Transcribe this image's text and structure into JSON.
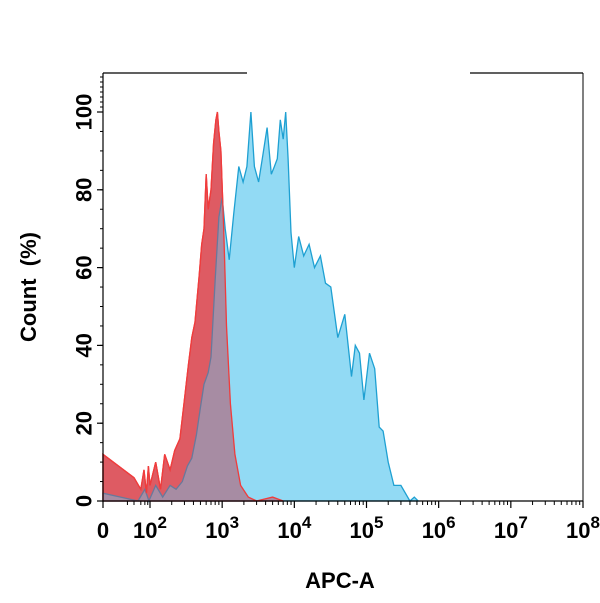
{
  "chart_data": {
    "type": "area",
    "xlabel": "APC-A",
    "ylabel": "Count  (%)",
    "x_scale": "biexponential-log",
    "xlim": [
      0,
      100000000
    ],
    "ylim": [
      0,
      100
    ],
    "x_ticks": [
      {
        "value": 0,
        "base": "0",
        "exp": ""
      },
      {
        "value": 100,
        "base": "10",
        "exp": "2"
      },
      {
        "value": 1000,
        "base": "10",
        "exp": "3"
      },
      {
        "value": 10000,
        "base": "10",
        "exp": "4"
      },
      {
        "value": 100000,
        "base": "10",
        "exp": "5"
      },
      {
        "value": 1000000,
        "base": "10",
        "exp": "6"
      },
      {
        "value": 10000000,
        "base": "10",
        "exp": "7"
      },
      {
        "value": 100000000,
        "base": "10",
        "exp": "8"
      }
    ],
    "y_ticks": [
      "0",
      "20",
      "40",
      "60",
      "80",
      "100"
    ],
    "series": [
      {
        "color": "#f03c3c",
        "fill": "#f56a6a",
        "points": [
          [
            0,
            12
          ],
          [
            20,
            6
          ],
          [
            40,
            3
          ],
          [
            55,
            8
          ],
          [
            70,
            2
          ],
          [
            85,
            9
          ],
          [
            100,
            4
          ],
          [
            120,
            10
          ],
          [
            140,
            3
          ],
          [
            160,
            12
          ],
          [
            190,
            8
          ],
          [
            220,
            13
          ],
          [
            260,
            16
          ],
          [
            300,
            26
          ],
          [
            340,
            35
          ],
          [
            380,
            42
          ],
          [
            420,
            46
          ],
          [
            480,
            58
          ],
          [
            520,
            66
          ],
          [
            560,
            70
          ],
          [
            600,
            84
          ],
          [
            640,
            75
          ],
          [
            700,
            80
          ],
          [
            760,
            92
          ],
          [
            820,
            98
          ],
          [
            860,
            100
          ],
          [
            900,
            95
          ],
          [
            960,
            90
          ],
          [
            1050,
            70
          ],
          [
            1150,
            45
          ],
          [
            1300,
            25
          ],
          [
            1500,
            12
          ],
          [
            1800,
            4
          ],
          [
            2300,
            1
          ],
          [
            3000,
            0
          ],
          [
            5000,
            1
          ],
          [
            7000,
            0
          ]
        ]
      },
      {
        "color": "#1ea0d2",
        "fill": "#7fd4f2",
        "points": [
          [
            0,
            2
          ],
          [
            30,
            0
          ],
          [
            60,
            3
          ],
          [
            90,
            0
          ],
          [
            120,
            4
          ],
          [
            150,
            1
          ],
          [
            190,
            4
          ],
          [
            230,
            3
          ],
          [
            280,
            5
          ],
          [
            330,
            9
          ],
          [
            380,
            11
          ],
          [
            440,
            17
          ],
          [
            500,
            24
          ],
          [
            560,
            30
          ],
          [
            640,
            33
          ],
          [
            700,
            37
          ],
          [
            800,
            57
          ],
          [
            900,
            73
          ],
          [
            1000,
            78
          ],
          [
            1100,
            70
          ],
          [
            1250,
            62
          ],
          [
            1450,
            74
          ],
          [
            1700,
            86
          ],
          [
            1950,
            82
          ],
          [
            2200,
            86
          ],
          [
            2500,
            100
          ],
          [
            2800,
            86
          ],
          [
            3200,
            82
          ],
          [
            3600,
            88
          ],
          [
            4200,
            96
          ],
          [
            4800,
            84
          ],
          [
            5300,
            86
          ],
          [
            5800,
            88
          ],
          [
            6400,
            98
          ],
          [
            7000,
            93
          ],
          [
            7600,
            100
          ],
          [
            8200,
            88
          ],
          [
            9000,
            69
          ],
          [
            10000,
            60
          ],
          [
            11500,
            68
          ],
          [
            13500,
            63
          ],
          [
            16000,
            66
          ],
          [
            19000,
            60
          ],
          [
            23000,
            63
          ],
          [
            27000,
            56
          ],
          [
            32000,
            55
          ],
          [
            40000,
            42
          ],
          [
            50000,
            48
          ],
          [
            62000,
            32
          ],
          [
            70000,
            40
          ],
          [
            80000,
            38
          ],
          [
            92000,
            26
          ],
          [
            110000,
            38
          ],
          [
            130000,
            34
          ],
          [
            150000,
            19
          ],
          [
            170000,
            18
          ],
          [
            200000,
            10
          ],
          [
            240000,
            4
          ],
          [
            300000,
            4
          ],
          [
            400000,
            0
          ],
          [
            460000,
            1
          ],
          [
            520000,
            0
          ]
        ]
      }
    ]
  }
}
